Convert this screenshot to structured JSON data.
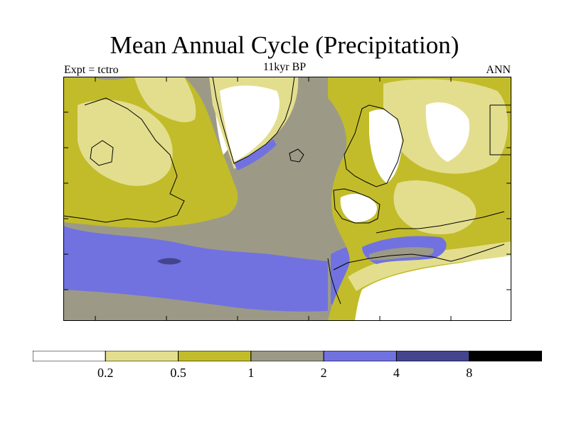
{
  "title": "Mean Annual Cycle (Precipitation)",
  "subtitle": "11kyr BP",
  "left_label": "Expt = tctro",
  "right_label": "ANN",
  "legend": {
    "colors": [
      "#ffffff",
      "#e3de8e",
      "#c2bc2b",
      "#9c9a86",
      "#7172e0",
      "#45448f",
      "#000000"
    ],
    "tick_labels": [
      "0.2",
      "0.5",
      "1",
      "2",
      "4",
      "8"
    ]
  },
  "colors": {
    "ocean": "#9c9a86",
    "wet": "#7172e0",
    "very_wet": "#45448f",
    "light": "#e3de8e",
    "medium": "#c2bc2b",
    "dry": "#ffffff",
    "coast": "#000000"
  }
}
